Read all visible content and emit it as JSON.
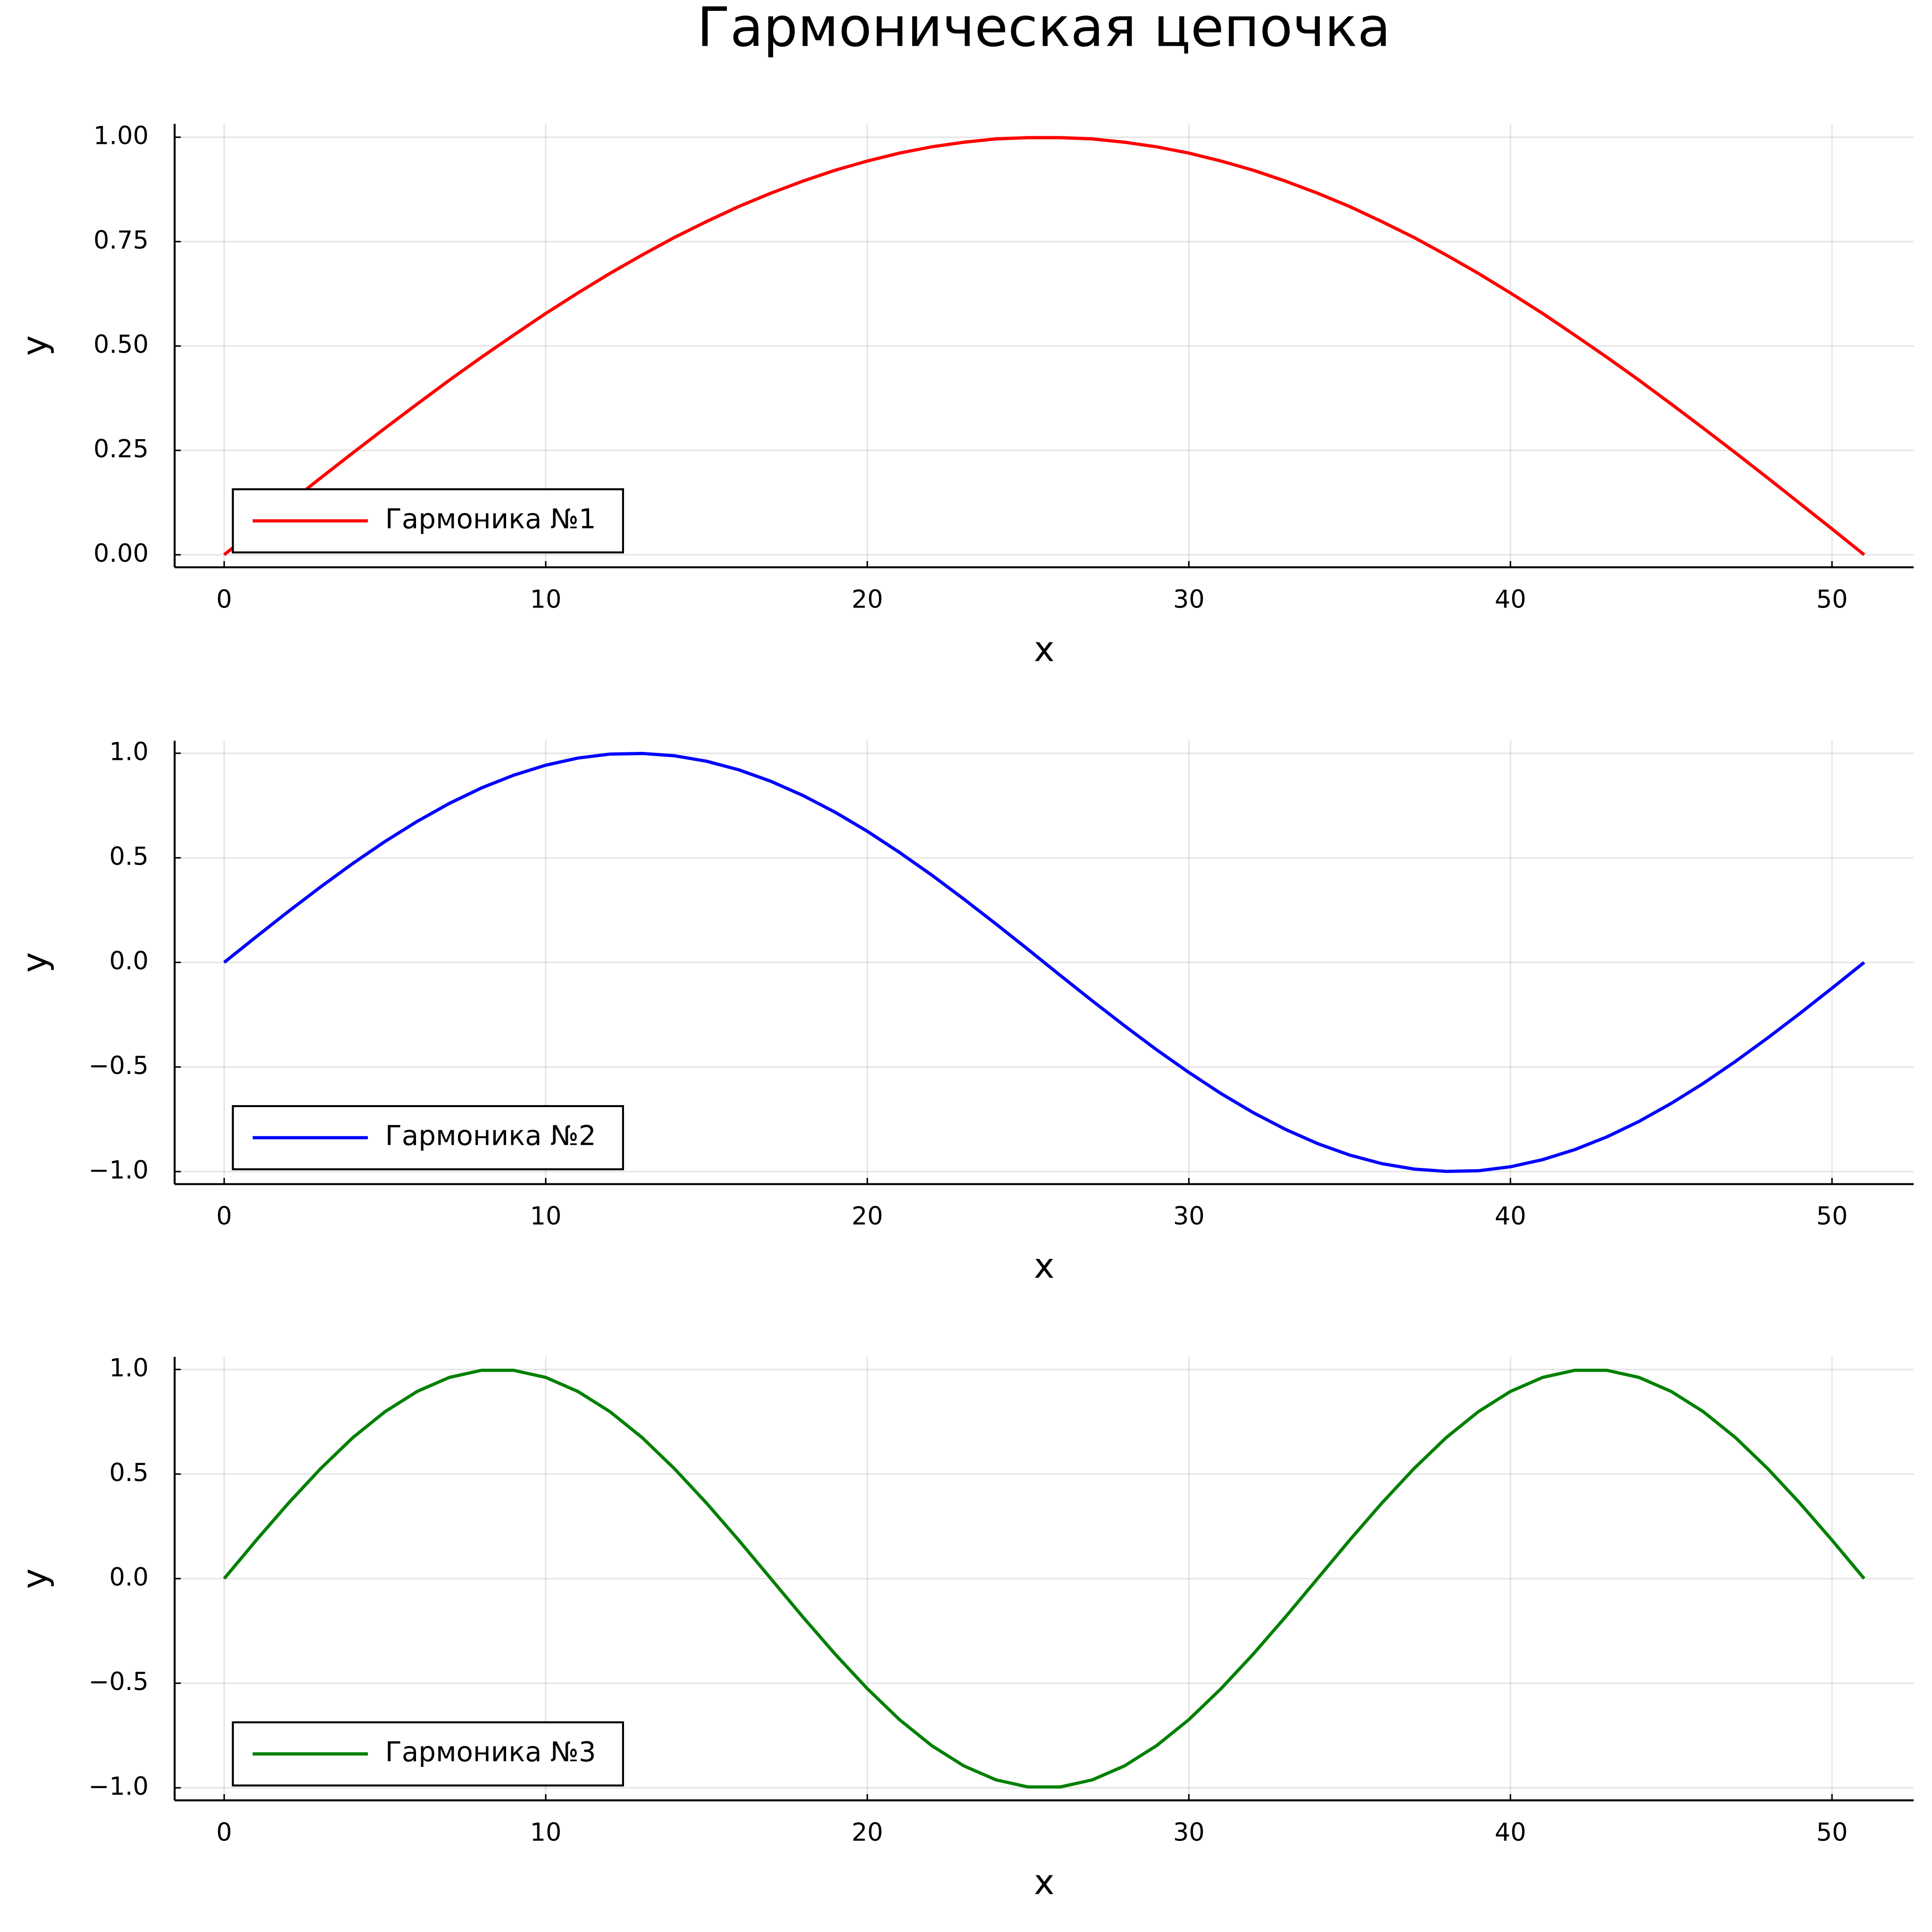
{
  "title": "Гармоническая цепочка",
  "chart_data": [
    {
      "type": "line",
      "xlabel": "x",
      "ylabel": "y",
      "grid": true,
      "legend": "bottom-left",
      "x": [
        0,
        1,
        2,
        3,
        4,
        5,
        6,
        7,
        8,
        9,
        10,
        11,
        12,
        13,
        14,
        15,
        16,
        17,
        18,
        19,
        20,
        21,
        22,
        23,
        24,
        25,
        26,
        27,
        28,
        29,
        30,
        31,
        32,
        33,
        34,
        35,
        36,
        37,
        38,
        39,
        40,
        41,
        42,
        43,
        44,
        45,
        46,
        47,
        48,
        49,
        50,
        51
      ],
      "xlim": [
        -1.54,
        52.54
      ],
      "xticks": [
        0,
        10,
        20,
        30,
        40,
        50
      ],
      "ylim": [
        -0.03,
        1.032
      ],
      "yticks": [
        {
          "value": 0,
          "label": "0.00"
        },
        0.25,
        {
          "value": 0.5,
          "label": "0.50"
        },
        0.75,
        {
          "value": 1,
          "label": "1.00"
        }
      ],
      "series": [
        {
          "name": "Гармоника №1",
          "color": "#ff0000",
          "values": [
            0,
            0.062,
            0.123,
            0.184,
            0.244,
            0.303,
            0.361,
            0.418,
            0.473,
            0.526,
            0.578,
            0.627,
            0.674,
            0.718,
            0.76,
            0.798,
            0.834,
            0.866,
            0.895,
            0.921,
            0.943,
            0.962,
            0.977,
            0.988,
            0.996,
            0.999,
            0.999,
            0.996,
            0.988,
            0.977,
            0.962,
            0.943,
            0.921,
            0.895,
            0.866,
            0.834,
            0.798,
            0.76,
            0.718,
            0.674,
            0.627,
            0.578,
            0.526,
            0.473,
            0.418,
            0.361,
            0.303,
            0.244,
            0.184,
            0.123,
            0.062,
            0
          ]
        }
      ]
    },
    {
      "type": "line",
      "xlabel": "x",
      "ylabel": "y",
      "grid": true,
      "legend": "bottom-left",
      "x": [
        0,
        1,
        2,
        3,
        4,
        5,
        6,
        7,
        8,
        9,
        10,
        11,
        12,
        13,
        14,
        15,
        16,
        17,
        18,
        19,
        20,
        21,
        22,
        23,
        24,
        25,
        26,
        27,
        28,
        29,
        30,
        31,
        32,
        33,
        34,
        35,
        36,
        37,
        38,
        39,
        40,
        41,
        42,
        43,
        44,
        45,
        46,
        47,
        48,
        49,
        50,
        51
      ],
      "xlim": [
        -1.54,
        52.54
      ],
      "xticks": [
        0,
        10,
        20,
        30,
        40,
        50
      ],
      "ylim": [
        -1.06,
        1.06
      ],
      "yticks": [
        {
          "value": -1,
          "label": "−1.0"
        },
        {
          "value": -0.5,
          "label": "−0.5"
        },
        {
          "value": 0,
          "label": "0.0"
        },
        0.5,
        {
          "value": 1,
          "label": "1.0"
        }
      ],
      "series": [
        {
          "name": "Гармоника №2",
          "color": "#0000ff",
          "values": [
            0,
            0.123,
            0.244,
            0.361,
            0.473,
            0.578,
            0.674,
            0.76,
            0.834,
            0.895,
            0.943,
            0.977,
            0.996,
            0.999,
            0.988,
            0.962,
            0.921,
            0.866,
            0.798,
            0.718,
            0.627,
            0.526,
            0.418,
            0.303,
            0.184,
            0.062,
            -0.062,
            -0.184,
            -0.303,
            -0.418,
            -0.526,
            -0.627,
            -0.718,
            -0.798,
            -0.866,
            -0.921,
            -0.962,
            -0.988,
            -0.999,
            -0.996,
            -0.977,
            -0.943,
            -0.895,
            -0.834,
            -0.76,
            -0.674,
            -0.578,
            -0.473,
            -0.361,
            -0.244,
            -0.123,
            0
          ]
        }
      ]
    },
    {
      "type": "line",
      "xlabel": "x",
      "ylabel": "y",
      "grid": true,
      "legend": "bottom-left",
      "x": [
        0,
        1,
        2,
        3,
        4,
        5,
        6,
        7,
        8,
        9,
        10,
        11,
        12,
        13,
        14,
        15,
        16,
        17,
        18,
        19,
        20,
        21,
        22,
        23,
        24,
        25,
        26,
        27,
        28,
        29,
        30,
        31,
        32,
        33,
        34,
        35,
        36,
        37,
        38,
        39,
        40,
        41,
        42,
        43,
        44,
        45,
        46,
        47,
        48,
        49,
        50,
        51
      ],
      "xlim": [
        -1.54,
        52.54
      ],
      "xticks": [
        0,
        10,
        20,
        30,
        40,
        50
      ],
      "ylim": [
        -1.06,
        1.06
      ],
      "yticks": [
        {
          "value": -1,
          "label": "−1.0"
        },
        {
          "value": -0.5,
          "label": "−0.5"
        },
        {
          "value": 0,
          "label": "0.0"
        },
        0.5,
        {
          "value": 1,
          "label": "1.0"
        }
      ],
      "series": [
        {
          "name": "Гармоника №3",
          "color": "#008000",
          "values": [
            0,
            0.184,
            0.361,
            0.526,
            0.674,
            0.798,
            0.895,
            0.962,
            0.996,
            0.996,
            0.962,
            0.895,
            0.798,
            0.674,
            0.526,
            0.361,
            0.184,
            0,
            -0.184,
            -0.361,
            -0.526,
            -0.674,
            -0.798,
            -0.895,
            -0.962,
            -0.996,
            -0.996,
            -0.962,
            -0.895,
            -0.798,
            -0.674,
            -0.526,
            -0.361,
            -0.184,
            0,
            0.184,
            0.361,
            0.526,
            0.674,
            0.798,
            0.895,
            0.962,
            0.996,
            0.996,
            0.962,
            0.895,
            0.798,
            0.674,
            0.526,
            0.361,
            0.184,
            0
          ]
        }
      ]
    }
  ]
}
